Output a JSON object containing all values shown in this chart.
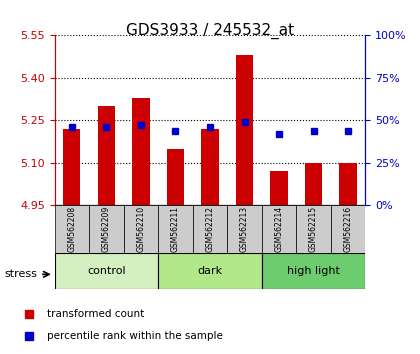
{
  "title": "GDS3933 / 245532_at",
  "samples": [
    "GSM562208",
    "GSM562209",
    "GSM562210",
    "GSM562211",
    "GSM562212",
    "GSM562213",
    "GSM562214",
    "GSM562215",
    "GSM562216"
  ],
  "transformed_counts": [
    5.22,
    5.3,
    5.33,
    5.15,
    5.22,
    5.48,
    5.07,
    5.1,
    5.1
  ],
  "percentile_ranks": [
    46,
    46,
    47,
    44,
    46,
    49,
    42,
    44,
    44
  ],
  "groups": [
    {
      "label": "control",
      "indices": [
        0,
        1,
        2
      ],
      "color": "#d4f0c0"
    },
    {
      "label": "dark",
      "indices": [
        3,
        4,
        5
      ],
      "color": "#b0e88a"
    },
    {
      "label": "high light",
      "indices": [
        6,
        7,
        8
      ],
      "color": "#6dcc6d"
    }
  ],
  "ylim_left": [
    4.95,
    5.55
  ],
  "ylim_right": [
    0,
    100
  ],
  "yticks_left": [
    4.95,
    5.1,
    5.25,
    5.4,
    5.55
  ],
  "yticks_right": [
    0,
    25,
    50,
    75,
    100
  ],
  "bar_color": "#cc0000",
  "dot_color": "#0000cc",
  "bar_width": 0.5,
  "bar_bottom": 4.95,
  "plot_bg_color": "#ffffff",
  "label_box_color": "#cccccc",
  "stress_label": "stress",
  "legend_items": [
    {
      "label": "transformed count",
      "color": "#cc0000"
    },
    {
      "label": "percentile rank within the sample",
      "color": "#0000cc"
    }
  ]
}
